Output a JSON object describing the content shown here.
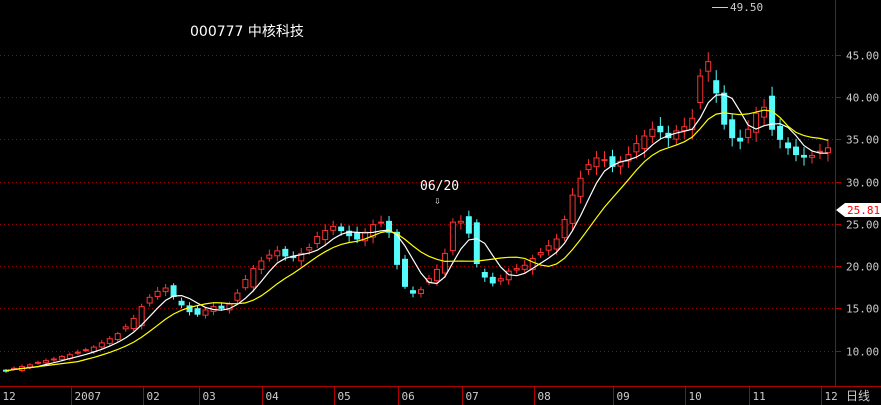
{
  "chart_data": {
    "type": "candlestick",
    "title": "000777 中核科技",
    "period_label": "日线",
    "current_price_label": "25.81",
    "peak_label": "49.50",
    "annotation_date": "06/20",
    "ylim": [
      5.8,
      51.5
    ],
    "y_ticks": [
      "10.00",
      "15.00",
      "20.00",
      "25.00",
      "30.00",
      "35.00",
      "40.00",
      "45.00"
    ],
    "y_tick_values": [
      10,
      15,
      20,
      25,
      30,
      35,
      40,
      45
    ],
    "x_ticks": [
      "12",
      "2007",
      "02",
      "03",
      "04",
      "05",
      "06",
      "07",
      "08",
      "09",
      "10",
      "11",
      "12"
    ],
    "x_tick_index": [
      0,
      9,
      18,
      25,
      33,
      42,
      50,
      58,
      67,
      77,
      86,
      94,
      103
    ],
    "closes": [
      7.6,
      7.9,
      8.1,
      8.3,
      8.6,
      8.8,
      9.0,
      9.3,
      9.5,
      9.8,
      10.1,
      10.4,
      10.9,
      11.4,
      12.0,
      12.8,
      13.8,
      15.2,
      16.3,
      17.0,
      17.4,
      16.4,
      15.4,
      14.6,
      14.3,
      14.8,
      15.2,
      15.0,
      15.5,
      16.8,
      18.4,
      19.7,
      20.6,
      21.3,
      21.8,
      21.2,
      21.0,
      21.5,
      22.2,
      23.5,
      24.2,
      24.7,
      24.2,
      23.6,
      23.2,
      24.0,
      24.9,
      25.2,
      24.0,
      20.2,
      17.6,
      16.8,
      17.2,
      18.5,
      19.6,
      21.5,
      25.2,
      25.3,
      23.9,
      20.3,
      18.7,
      18.0,
      18.5,
      19.4,
      19.7,
      20.1,
      20.9,
      21.6,
      22.4,
      23.2,
      25.5,
      28.4,
      30.4,
      32.0,
      32.8,
      32.6,
      31.8,
      32.4,
      33.2,
      34.5,
      35.4,
      36.2,
      35.9,
      35.2,
      36.0,
      36.5,
      37.5,
      42.5,
      44.2,
      40.5,
      36.8,
      35.2,
      34.8,
      36.2,
      38.1,
      38.8,
      36.2,
      35.0,
      34.0,
      33.2,
      32.9,
      33.1,
      33.6,
      34.0
    ],
    "series": [
      {
        "name": "MA5",
        "color": "#ffffff"
      },
      {
        "name": "MA10",
        "color": "#ffff00"
      }
    ],
    "up_color": "#ff3232",
    "down_color": "#54fcfc"
  }
}
